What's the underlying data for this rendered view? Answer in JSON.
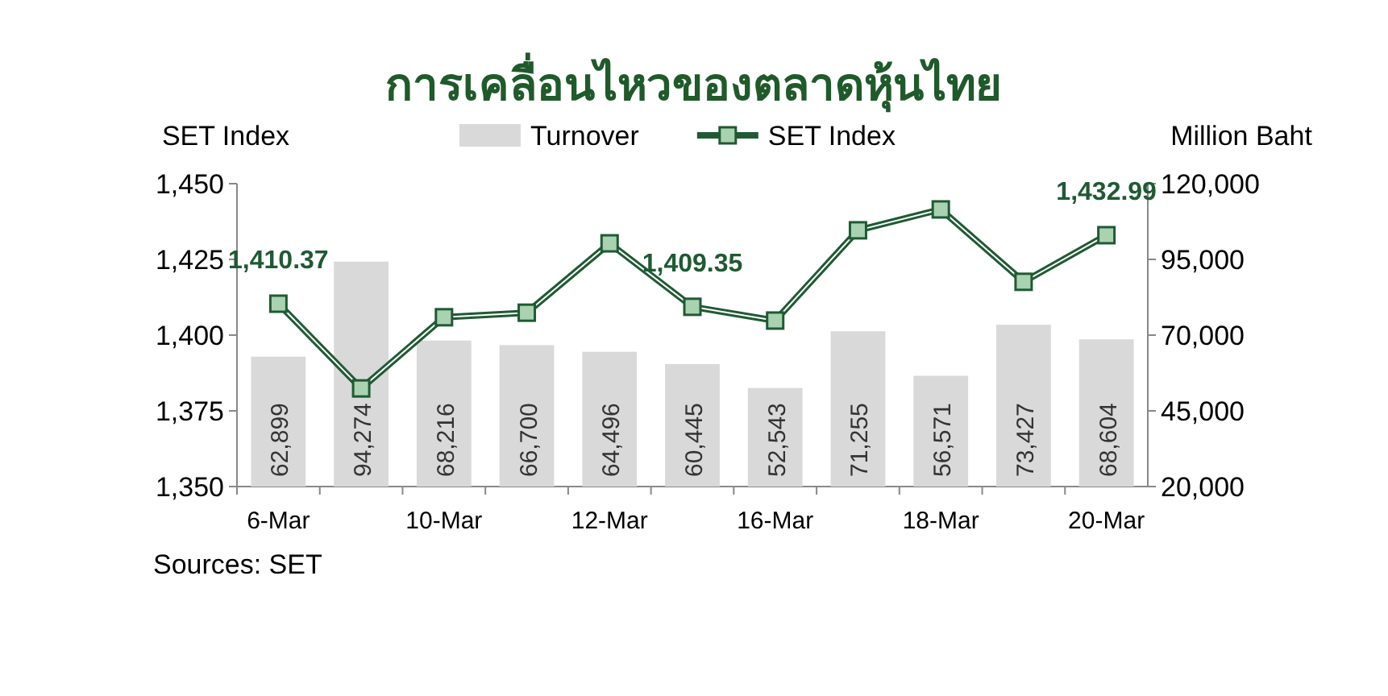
{
  "chart_data": {
    "type": "bar",
    "title": "การเคลื่อนไหวของตลาดหุ้นไทย",
    "ylabel": "SET Index",
    "y2label": "Million Baht",
    "categories": [
      "6-Mar",
      null,
      "10-Mar",
      null,
      "12-Mar",
      null,
      "16-Mar",
      null,
      "18-Mar",
      null,
      "20-Mar"
    ],
    "series": [
      {
        "name": "Turnover",
        "axis": "y2",
        "color": "#d9d9d9",
        "values": [
          62899,
          94274,
          68216,
          66700,
          64496,
          60445,
          52543,
          71255,
          56571,
          73427,
          68604
        ],
        "value_labels": [
          "62,899",
          "94,274",
          "68,216",
          "66,700",
          "64,496",
          "60,445",
          "52,543",
          "71,255",
          "56,571",
          "73,427",
          "68,604"
        ]
      },
      {
        "name": "SET Index",
        "type": "line",
        "axis": "y",
        "color": "#1f5a33",
        "marker": "square",
        "values": [
          1410.37,
          1382.4,
          1405.9,
          1407.4,
          1430.3,
          1409.35,
          1404.8,
          1434.6,
          1441.5,
          1417.6,
          1432.99
        ],
        "value_labels": [
          "1,410.37",
          null,
          null,
          null,
          null,
          "1,409.35",
          null,
          null,
          null,
          null,
          "1,432.99"
        ]
      }
    ],
    "ylim": [
      1350,
      1450
    ],
    "yticks": [
      {
        "value": 1350,
        "label": "1,350"
      },
      {
        "value": 1375,
        "label": "1,375"
      },
      {
        "value": 1400,
        "label": "1,400"
      },
      {
        "value": 1425,
        "label": "1,425"
      },
      {
        "value": 1450,
        "label": "1,450"
      }
    ],
    "y2lim": [
      20000,
      120000
    ],
    "y2ticks": [
      {
        "value": 20000,
        "label": "20,000"
      },
      {
        "value": 45000,
        "label": "45,000"
      },
      {
        "value": 70000,
        "label": "70,000"
      },
      {
        "value": 95000,
        "label": "95,000"
      },
      {
        "value": 120000,
        "label": "120,000"
      }
    ],
    "legend": "top",
    "grid": false,
    "annotations": [
      "Sources: SET"
    ]
  }
}
